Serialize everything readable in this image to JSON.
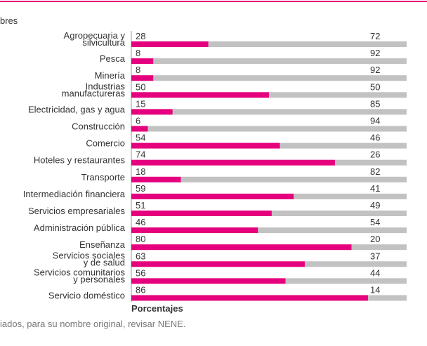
{
  "chart_data": {
    "type": "stacked-barh",
    "legend_fragment": "bres",
    "categories": [
      "Agropecuaria y\nsilvicultura",
      "Pesca",
      "Minería",
      "Industrias\nmanufactureras",
      "Electricidad, gas y agua",
      "Construcción",
      "Comercio",
      "Hoteles y restaurantes",
      "Transporte",
      "Intermediación financiera",
      "Servicios empresariales",
      "Administración pública",
      "Enseñanza",
      "Servicios sociales\ny de salud",
      "Servicios comunitarios\ny personales",
      "Servicio doméstico"
    ],
    "series": [
      {
        "color": "#e5007e",
        "values": [
          28,
          8,
          8,
          50,
          15,
          6,
          54,
          74,
          18,
          59,
          51,
          46,
          80,
          63,
          56,
          86
        ]
      },
      {
        "color": "#c2c2c2",
        "values": [
          72,
          92,
          92,
          50,
          85,
          94,
          46,
          26,
          82,
          41,
          49,
          54,
          20,
          37,
          44,
          14
        ]
      }
    ],
    "xlim": [
      0,
      100
    ],
    "xlabel": "Porcentajes",
    "note": "iados, para su nombre original, revisar NENE."
  }
}
